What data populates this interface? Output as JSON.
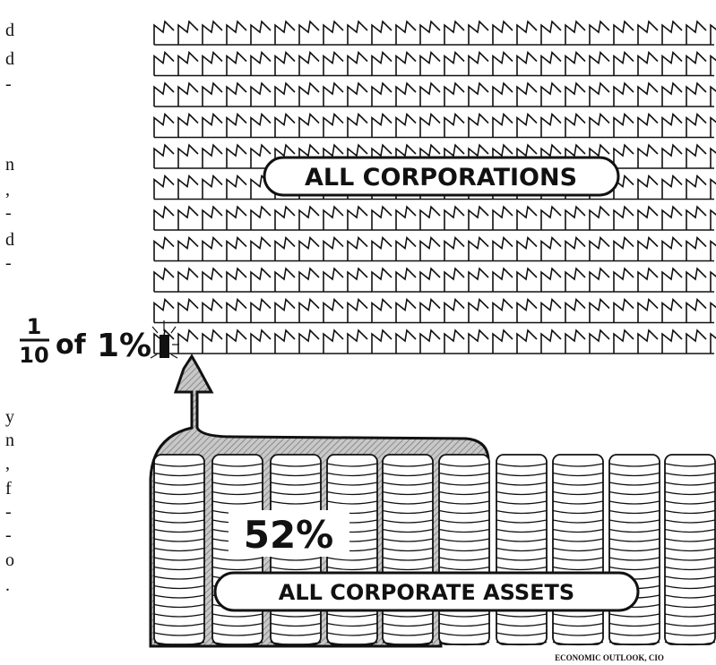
{
  "margin_fragments": [
    "d",
    "d",
    "-",
    "n",
    ",",
    "-",
    "d",
    "-",
    "y",
    "n",
    ",",
    "f",
    "-",
    "-",
    "o",
    "."
  ],
  "illustration": {
    "top_label": "ALL CORPORATIONS",
    "fraction": {
      "numerator": "1",
      "denominator": "10",
      "of": "of",
      "percent": "1%"
    },
    "share_label": "52%",
    "bottom_label": "ALL CORPORATE ASSETS",
    "credit": "ECONOMIC OUTLOOK, CIO"
  }
}
